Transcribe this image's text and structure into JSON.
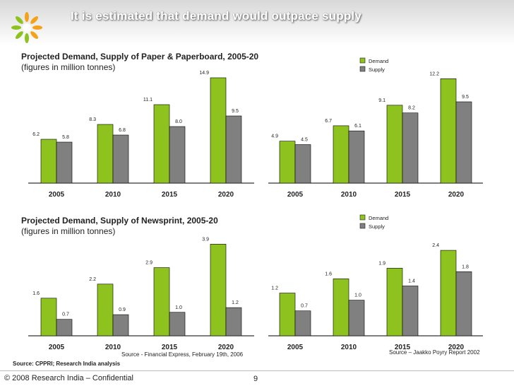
{
  "slide": {
    "title": "It is estimated that demand would outpace supply",
    "page_number": "9",
    "copyright": "© 2008 Research India – Confidential",
    "footer_source": "Source: CPPRI; Research India analysis"
  },
  "sections": {
    "paper": {
      "title": "Projected Demand, Supply of Paper & Paperboard, 2005-20",
      "subtitle": "(figures in million tonnes)"
    },
    "newsprint": {
      "title": "Projected Demand, Supply of Newsprint, 2005-20",
      "subtitle": "(figures in million tonnes)",
      "source_left": "Source - Financial Express, February 19th, 2006",
      "source_right": "Source – Jaakko Poyry Report 2002"
    }
  },
  "colors": {
    "demand": "#8dc21f",
    "supply": "#808080",
    "axis": "#000000"
  },
  "chart_data": [
    {
      "id": "paper-left",
      "type": "bar",
      "title": "Projected Demand, Supply of Paper & Paperboard, 2005-20",
      "categories": [
        "2005",
        "2010",
        "2015",
        "2020"
      ],
      "series": [
        {
          "name": "Demand",
          "values": [
            6.2,
            8.3,
            11.1,
            14.9
          ]
        },
        {
          "name": "Supply",
          "values": [
            5.8,
            6.8,
            8.0,
            9.5
          ]
        }
      ],
      "labels": [
        [
          "6.2",
          "8.3",
          "11.1",
          "14.9"
        ],
        [
          "5.8",
          "6.8",
          "8.0",
          "9.5"
        ]
      ],
      "ylim": [
        0,
        15.5
      ],
      "legend": null
    },
    {
      "id": "paper-right",
      "type": "bar",
      "categories": [
        "2005",
        "2010",
        "2015",
        "2020"
      ],
      "series": [
        {
          "name": "Demand",
          "values": [
            4.9,
            6.7,
            9.1,
            12.2
          ]
        },
        {
          "name": "Supply",
          "values": [
            4.5,
            6.1,
            8.2,
            9.5
          ]
        }
      ],
      "labels": [
        [
          "4.9",
          "6.7",
          "9.1",
          "12.2"
        ],
        [
          "4.5",
          "6.1",
          "8.2",
          "9.5"
        ]
      ],
      "ylim": [
        0,
        13.3
      ],
      "legend": [
        "Demand",
        "Supply"
      ]
    },
    {
      "id": "newsprint-left",
      "type": "bar",
      "title": "Projected Demand, Supply of Newsprint, 2005-20",
      "categories": [
        "2005",
        "2010",
        "2015",
        "2020"
      ],
      "series": [
        {
          "name": "Demand",
          "values": [
            1.6,
            2.2,
            2.9,
            3.9
          ]
        },
        {
          "name": "Supply",
          "values": [
            0.7,
            0.9,
            1.0,
            1.2
          ]
        }
      ],
      "labels": [
        [
          "1.6",
          "2.2",
          "2.9",
          "3.9"
        ],
        [
          "0.7",
          "0.9",
          "1.0",
          "1.2"
        ]
      ],
      "ylim": [
        0,
        4.0
      ],
      "legend": null
    },
    {
      "id": "newsprint-right",
      "type": "bar",
      "categories": [
        "2005",
        "2010",
        "2015",
        "2020"
      ],
      "series": [
        {
          "name": "Demand",
          "values": [
            1.2,
            1.6,
            1.9,
            2.4
          ]
        },
        {
          "name": "Supply",
          "values": [
            0.7,
            1.0,
            1.4,
            1.8
          ]
        }
      ],
      "labels": [
        [
          "1.2",
          "1.6",
          "1.9",
          "2.4"
        ],
        [
          "0.7",
          "1.0",
          "1.4",
          "1.8"
        ]
      ],
      "ylim": [
        0,
        2.6
      ],
      "legend": [
        "Demand",
        "Supply"
      ]
    }
  ]
}
